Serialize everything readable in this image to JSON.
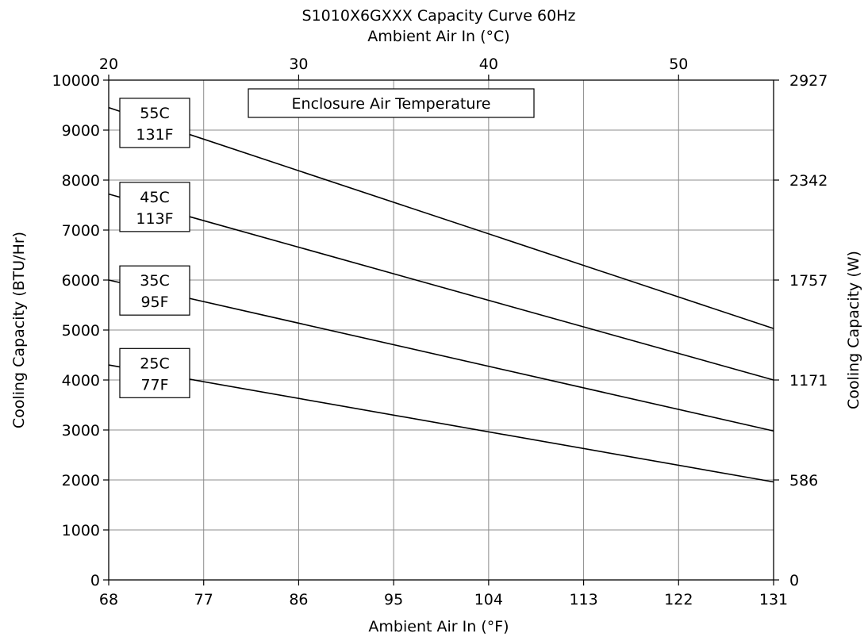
{
  "chart_data": {
    "type": "line",
    "title": "S1010X6GXXX Capacity Curve 60Hz",
    "top_axis": {
      "label": "Ambient Air In (°C)",
      "ticks": [
        "20",
        "30",
        "40",
        "50"
      ],
      "tick_values": [
        20,
        30,
        40,
        50
      ]
    },
    "xlabel": "Ambient Air In (°F)",
    "xlim": [
      68,
      131
    ],
    "x_ticks": [
      "68",
      "77",
      "86",
      "95",
      "104",
      "113",
      "122",
      "131"
    ],
    "x_tick_values": [
      68,
      77,
      86,
      95,
      104,
      113,
      122,
      131
    ],
    "ylabel": "Cooling Capacity (BTU/Hr)",
    "ylim": [
      0,
      10000
    ],
    "y_ticks": [
      "0",
      "1000",
      "2000",
      "3000",
      "4000",
      "5000",
      "6000",
      "7000",
      "8000",
      "9000",
      "10000"
    ],
    "y_tick_values": [
      0,
      1000,
      2000,
      3000,
      4000,
      5000,
      6000,
      7000,
      8000,
      9000,
      10000
    ],
    "right_axis": {
      "label": "Cooling Capacity (W)",
      "ticks": [
        "0",
        "586",
        "1171",
        "1757",
        "2342",
        "2927"
      ],
      "tick_values": [
        0,
        2000,
        4000,
        6000,
        8000,
        10000
      ]
    },
    "grid": true,
    "legend_title": "Enclosure Air Temperature",
    "series": [
      {
        "name": "55C 131F",
        "label_line1": "55C",
        "label_line2": "131F",
        "x": [
          68,
          131
        ],
        "y": [
          9450,
          5030
        ]
      },
      {
        "name": "45C 113F",
        "label_line1": "45C",
        "label_line2": "113F",
        "x": [
          68,
          131
        ],
        "y": [
          7720,
          4000
        ]
      },
      {
        "name": "35C 95F",
        "label_line1": "35C",
        "label_line2": "95F",
        "x": [
          68,
          131
        ],
        "y": [
          6000,
          2980
        ]
      },
      {
        "name": "25C 77F",
        "label_line1": "25C",
        "label_line2": "77F",
        "x": [
          68,
          131
        ],
        "y": [
          4300,
          1960
        ]
      }
    ]
  }
}
